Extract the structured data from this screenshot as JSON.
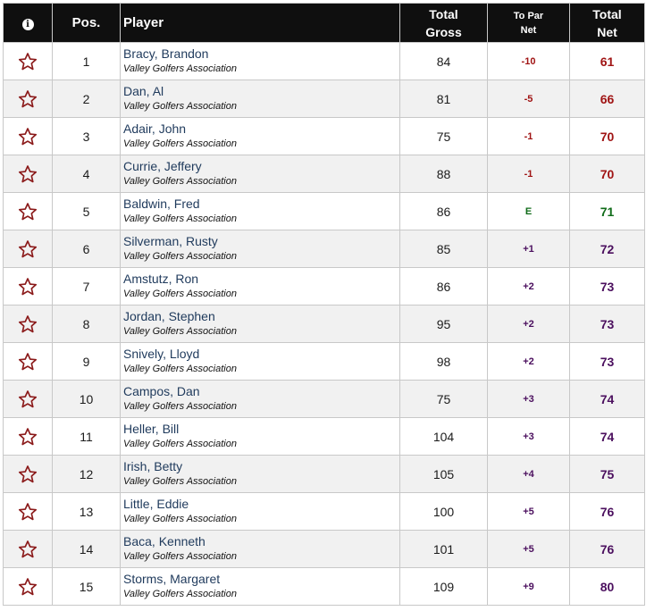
{
  "header": {
    "info_icon": "info-icon",
    "pos": "Pos.",
    "player": "Player",
    "total_gross_line1": "Total",
    "total_gross_line2": "Gross",
    "to_par_line1": "To Par",
    "to_par_line2": "Net",
    "total_net_line1": "Total",
    "total_net_line2": "Net"
  },
  "colors": {
    "under_par": "#a01414",
    "even_par": "#0f6b18",
    "over_par": "#4b0f5e",
    "header_bg": "#0f0f0f",
    "star_outline": "#8b1a1a"
  },
  "favorite_icon": "star-outline-icon",
  "rows": [
    {
      "pos": "1",
      "player": "Bracy, Brandon",
      "club": "Valley Golfers Association",
      "gross": "84",
      "to_par": "-10",
      "net": "61",
      "status": "under"
    },
    {
      "pos": "2",
      "player": "Dan, Al",
      "club": "Valley Golfers Association",
      "gross": "81",
      "to_par": "-5",
      "net": "66",
      "status": "under"
    },
    {
      "pos": "3",
      "player": "Adair, John",
      "club": "Valley Golfers Association",
      "gross": "75",
      "to_par": "-1",
      "net": "70",
      "status": "under"
    },
    {
      "pos": "4",
      "player": "Currie, Jeffery",
      "club": "Valley Golfers Association",
      "gross": "88",
      "to_par": "-1",
      "net": "70",
      "status": "under"
    },
    {
      "pos": "5",
      "player": "Baldwin, Fred",
      "club": "Valley Golfers Association",
      "gross": "86",
      "to_par": "E",
      "net": "71",
      "status": "even"
    },
    {
      "pos": "6",
      "player": "Silverman, Rusty",
      "club": "Valley Golfers Association",
      "gross": "85",
      "to_par": "+1",
      "net": "72",
      "status": "over"
    },
    {
      "pos": "7",
      "player": "Amstutz, Ron",
      "club": "Valley Golfers Association",
      "gross": "86",
      "to_par": "+2",
      "net": "73",
      "status": "over"
    },
    {
      "pos": "8",
      "player": "Jordan, Stephen",
      "club": "Valley Golfers Association",
      "gross": "95",
      "to_par": "+2",
      "net": "73",
      "status": "over"
    },
    {
      "pos": "9",
      "player": "Snively, Lloyd",
      "club": "Valley Golfers Association",
      "gross": "98",
      "to_par": "+2",
      "net": "73",
      "status": "over"
    },
    {
      "pos": "10",
      "player": "Campos, Dan",
      "club": "Valley Golfers Association",
      "gross": "75",
      "to_par": "+3",
      "net": "74",
      "status": "over"
    },
    {
      "pos": "11",
      "player": "Heller, Bill",
      "club": "Valley Golfers Association",
      "gross": "104",
      "to_par": "+3",
      "net": "74",
      "status": "over"
    },
    {
      "pos": "12",
      "player": "Irish, Betty",
      "club": "Valley Golfers Association",
      "gross": "105",
      "to_par": "+4",
      "net": "75",
      "status": "over"
    },
    {
      "pos": "13",
      "player": "Little, Eddie",
      "club": "Valley Golfers Association",
      "gross": "100",
      "to_par": "+5",
      "net": "76",
      "status": "over"
    },
    {
      "pos": "14",
      "player": "Baca, Kenneth",
      "club": "Valley Golfers Association",
      "gross": "101",
      "to_par": "+5",
      "net": "76",
      "status": "over"
    },
    {
      "pos": "15",
      "player": "Storms, Margaret",
      "club": "Valley Golfers Association",
      "gross": "109",
      "to_par": "+9",
      "net": "80",
      "status": "over"
    }
  ]
}
